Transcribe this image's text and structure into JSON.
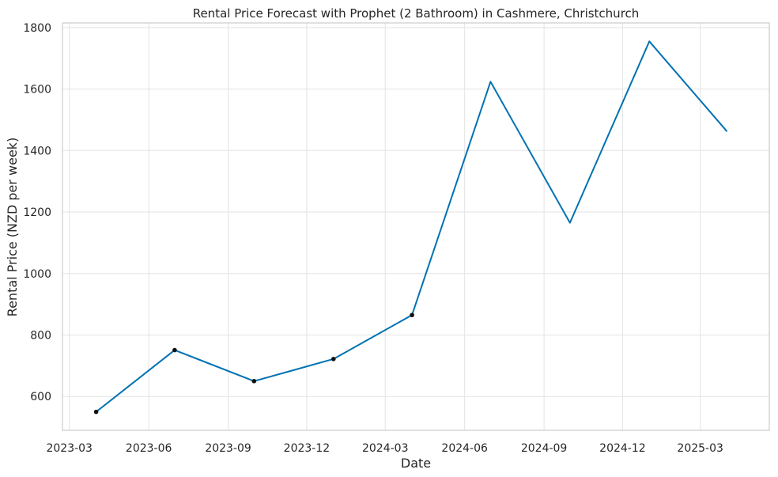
{
  "chart_data": {
    "type": "line",
    "title": "Rental Price Forecast with Prophet (2 Bathroom) in Cashmere, Christchurch",
    "xlabel": "Date",
    "ylabel": "Rental Price (NZD per week)",
    "x_ticks": [
      "2023-03",
      "2023-06",
      "2023-09",
      "2023-12",
      "2024-03",
      "2024-06",
      "2024-09",
      "2024-12",
      "2025-03"
    ],
    "y_ticks": [
      600,
      800,
      1000,
      1200,
      1400,
      1600,
      1800
    ],
    "ylim": [
      490,
      1815
    ],
    "xlim": [
      "2023-02-21",
      "2025-05-20"
    ],
    "grid": true,
    "series": [
      {
        "color": "#0072b2",
        "points": [
          {
            "x": "2023-04-01",
            "y": 550
          },
          {
            "x": "2023-07-01",
            "y": 751
          },
          {
            "x": "2023-10-01",
            "y": 650
          },
          {
            "x": "2024-01-01",
            "y": 722
          },
          {
            "x": "2024-04-01",
            "y": 865
          },
          {
            "x": "2024-07-01",
            "y": 1624
          },
          {
            "x": "2024-10-01",
            "y": 1165
          },
          {
            "x": "2025-01-01",
            "y": 1755
          },
          {
            "x": "2025-04-01",
            "y": 1462
          }
        ]
      }
    ],
    "observed": [
      {
        "x": "2023-04-01",
        "y": 550
      },
      {
        "x": "2023-07-01",
        "y": 751
      },
      {
        "x": "2023-10-01",
        "y": 650
      },
      {
        "x": "2024-01-01",
        "y": 722
      },
      {
        "x": "2024-04-01",
        "y": 865
      }
    ]
  }
}
